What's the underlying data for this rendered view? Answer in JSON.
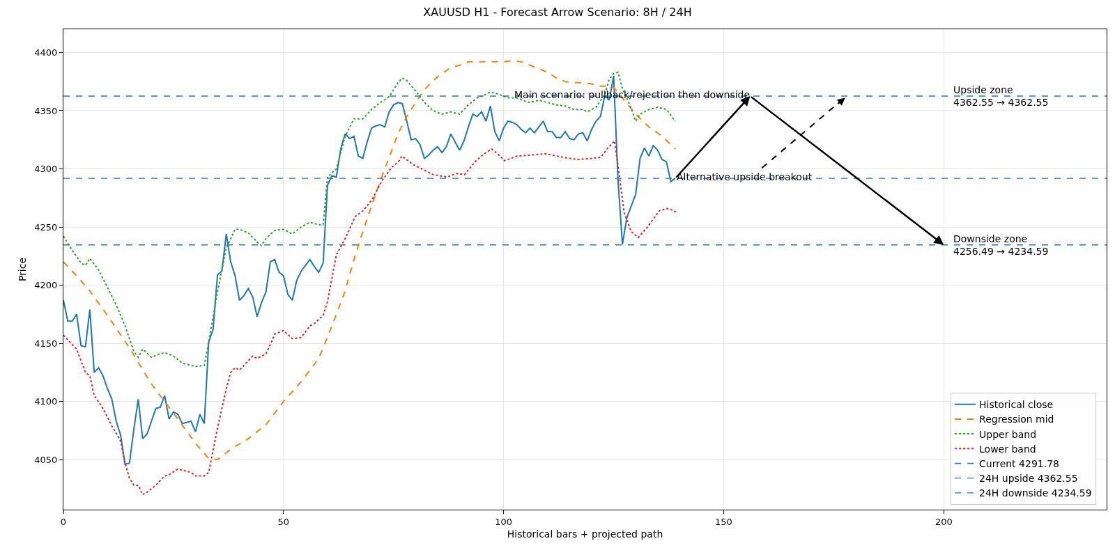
{
  "chart_data": {
    "type": "line",
    "title": "XAUUSD H1 - Forecast Arrow Scenario: 8H / 24H",
    "xlabel": "Historical bars + projected path",
    "ylabel": "Price",
    "xlim": [
      0,
      237
    ],
    "ylim": [
      4007,
      4420
    ],
    "xticks": [
      0,
      50,
      100,
      150,
      200
    ],
    "yticks": [
      4050,
      4100,
      4150,
      4200,
      4250,
      4300,
      4350,
      4400
    ],
    "grid": true,
    "legend": "bottom right",
    "series": [
      {
        "name": "Historical close",
        "color": "#1f77b4",
        "line_style": "solid",
        "x": [
          0,
          1,
          2,
          3,
          4,
          5,
          6,
          7,
          8,
          9,
          10,
          11,
          12,
          13,
          14,
          15,
          16,
          17,
          18,
          19,
          20,
          21,
          22,
          23,
          24,
          25,
          26,
          27,
          28,
          29,
          30,
          31,
          32,
          33,
          34,
          35,
          36,
          37,
          38,
          39,
          40,
          41,
          42,
          43,
          44,
          45,
          46,
          47,
          48,
          49,
          50,
          51,
          52,
          53,
          54,
          55,
          56,
          57,
          58,
          59,
          60,
          61,
          62,
          63,
          64,
          65,
          66,
          67,
          68,
          69,
          70,
          71,
          72,
          73,
          74,
          75,
          76,
          77,
          78,
          79,
          80,
          81,
          82,
          83,
          84,
          85,
          86,
          87,
          88,
          89,
          90,
          91,
          92,
          93,
          94,
          95,
          96,
          97,
          98,
          99,
          100,
          101,
          102,
          103,
          104,
          105,
          106,
          107,
          108,
          109,
          110,
          111,
          112,
          113,
          114,
          115,
          116,
          117,
          118,
          119,
          120,
          121,
          122,
          123,
          124,
          125,
          126,
          127,
          128,
          129,
          130,
          131,
          132,
          133,
          134,
          135,
          136,
          137,
          138,
          139
        ],
        "values": [
          4187,
          4169,
          4169,
          4175,
          4148,
          4147,
          4179,
          4125,
          4129,
          4122,
          4111,
          4102,
          4083,
          4071,
          4046,
          4047,
          4076,
          4102,
          4068,
          4072,
          4083,
          4094,
          4095,
          4105,
          4085,
          4091,
          4089,
          4081,
          4082,
          4083,
          4074,
          4089,
          4081,
          4151,
          4162,
          4209,
          4212,
          4244,
          4220,
          4208,
          4187,
          4191,
          4197,
          4190,
          4173,
          4185,
          4194,
          4220,
          4222,
          4211,
          4208,
          4192,
          4187,
          4204,
          4212,
          4217,
          4222,
          4216,
          4211,
          4219,
          4286,
          4294,
          4293,
          4317,
          4330,
          4326,
          4328,
          4311,
          4309,
          4323,
          4335,
          4337,
          4338,
          4336,
          4349,
          4355,
          4357,
          4356,
          4341,
          4325,
          4326,
          4321,
          4309,
          4312,
          4316,
          4319,
          4314,
          4319,
          4330,
          4323,
          4316,
          4324,
          4336,
          4347,
          4345,
          4349,
          4341,
          4354,
          4332,
          4324,
          4335,
          4341,
          4340,
          4338,
          4334,
          4331,
          4335,
          4331,
          4336,
          4341,
          4332,
          4332,
          4327,
          4327,
          4332,
          4326,
          4325,
          4330,
          4331,
          4324,
          4334,
          4341,
          4345,
          4363,
          4359,
          4380,
          4290,
          4235,
          4258,
          4268,
          4278,
          4309,
          4318,
          4311,
          4320,
          4316,
          4308,
          4306,
          4289,
          4292
        ]
      },
      {
        "name": "Regression mid",
        "color": "#ff7f0e",
        "line_style": "dashed",
        "x": [
          0,
          3,
          6,
          10,
          15,
          20,
          25,
          30,
          33,
          35,
          38,
          42,
          46,
          50,
          54,
          58,
          61,
          64,
          66,
          68,
          70,
          72,
          74,
          76,
          78,
          80,
          82,
          84,
          86,
          88,
          90,
          92,
          94,
          96,
          98,
          100,
          102,
          104,
          106,
          108,
          110,
          112,
          114,
          116,
          118,
          120,
          122,
          124,
          125,
          127,
          130,
          133,
          136,
          139
        ],
        "values": [
          4220,
          4208,
          4195,
          4174,
          4146,
          4115,
          4090,
          4064,
          4051,
          4050,
          4059,
          4068,
          4080,
          4100,
          4117,
          4137,
          4165,
          4195,
          4222,
          4246,
          4268,
          4290,
          4310,
          4330,
          4345,
          4357,
          4368,
          4376,
          4382,
          4387,
          4389,
          4392,
          4392,
          4392,
          4392,
          4392,
          4393,
          4392,
          4389,
          4386,
          4383,
          4378,
          4375,
          4374,
          4374,
          4373,
          4371,
          4371,
          4370,
          4361,
          4347,
          4336,
          4328,
          4317
        ]
      },
      {
        "name": "Upper band",
        "color": "#2ca02c",
        "line_style": "dotted",
        "x": [
          0,
          2,
          4,
          5,
          6,
          8,
          10,
          12,
          14,
          15,
          16,
          17,
          18,
          20,
          22,
          23,
          25,
          27,
          29,
          30,
          32,
          33,
          35,
          37,
          39,
          40,
          42,
          44,
          45,
          46,
          48,
          50,
          52,
          54,
          56,
          58,
          59,
          60,
          62,
          64,
          66,
          68,
          70,
          72,
          74,
          76,
          77,
          78,
          80,
          82,
          84,
          86,
          88,
          90,
          92,
          94,
          96,
          97,
          99,
          101,
          103,
          105,
          106,
          108,
          110,
          112,
          114,
          116,
          118,
          119,
          121,
          123,
          124,
          125,
          126,
          127,
          129,
          130,
          131,
          133,
          135,
          137,
          139
        ],
        "values": [
          4242,
          4230,
          4219,
          4217,
          4223,
          4213,
          4198,
          4183,
          4165,
          4154,
          4143,
          4138,
          4145,
          4138,
          4141,
          4142,
          4139,
          4133,
          4131,
          4130,
          4131,
          4151,
          4194,
          4232,
          4248,
          4248,
          4245,
          4237,
          4234,
          4240,
          4247,
          4248,
          4244,
          4250,
          4254,
          4252,
          4252,
          4293,
          4300,
          4328,
          4343,
          4343,
          4351,
          4357,
          4362,
          4374,
          4378,
          4376,
          4367,
          4357,
          4350,
          4347,
          4349,
          4347,
          4355,
          4361,
          4364,
          4366,
          4364,
          4361,
          4361,
          4358,
          4357,
          4359,
          4357,
          4355,
          4354,
          4351,
          4351,
          4349,
          4353,
          4364,
          4377,
          4382,
          4383,
          4369,
          4352,
          4341,
          4347,
          4351,
          4353,
          4351,
          4341
        ]
      },
      {
        "name": "Lower band",
        "color": "#d62728",
        "line_style": "dotted",
        "x": [
          0,
          2,
          3,
          5,
          6,
          7,
          9,
          11,
          13,
          14,
          15,
          16,
          17,
          18,
          19,
          21,
          23,
          24,
          26,
          28,
          29,
          30,
          32,
          33,
          34,
          35,
          36,
          37,
          38,
          39,
          40,
          42,
          43,
          44,
          46,
          47,
          48,
          50,
          52,
          54,
          56,
          57,
          59,
          60,
          61,
          62,
          64,
          66.3,
          68.1,
          70.2,
          72.4,
          74.5,
          76.1,
          76.9,
          79.3,
          81.9,
          84,
          87.2,
          89.3,
          91.1,
          93.5,
          95.6,
          97.3,
          98.9,
          100.2,
          103.1,
          106.8,
          109.5,
          112.1,
          114.7,
          117.3,
          120,
          122.1,
          123.7,
          125.2,
          126.3,
          127.4,
          129,
          130.6,
          132.7,
          135.4,
          137.5,
          139.6
        ],
        "values": [
          4157,
          4149,
          4145,
          4125,
          4122,
          4105,
          4094,
          4079,
          4066,
          4047,
          4034,
          4028,
          4028,
          4020,
          4022,
          4028,
          4036,
          4037,
          4042,
          4040,
          4039,
          4036,
          4036,
          4039,
          4058,
          4077,
          4094,
          4111,
          4125,
          4129,
          4127,
          4135,
          4139,
          4137,
          4141,
          4149,
          4158,
          4161,
          4154,
          4155,
          4165,
          4167,
          4174,
          4186,
          4206,
          4226,
          4240,
          4259,
          4264,
          4274,
          4290,
          4301,
          4306,
          4311,
          4304,
          4299,
          4295,
          4293,
          4296,
          4295,
          4306,
          4313,
          4317,
          4312,
          4307,
          4311,
          4312,
          4313,
          4311,
          4309,
          4308,
          4309,
          4310,
          4318,
          4324,
          4294,
          4262,
          4246,
          4241,
          4250,
          4264,
          4266,
          4262
        ]
      }
    ],
    "ref_lines": [
      {
        "axis": "y",
        "value": 4291.78,
        "label": "Current 4291.78",
        "color": "#1f77b4",
        "line_style": "dashed"
      },
      {
        "axis": "y",
        "value": 4362.55,
        "label": "24H upside 4362.55",
        "color": "#1f77b4",
        "line_style": "dashed"
      },
      {
        "axis": "y",
        "value": 4234.59,
        "label": "24H downside 4234.59",
        "color": "#1f77b4",
        "line_style": "dashed"
      }
    ],
    "annotations": [
      {
        "text": "Main scenario: pullback/rejection then downside",
        "x": 156,
        "y": 4362.55
      },
      {
        "text": "Alternative upside breakout",
        "x": 139,
        "y": 4291.78
      },
      {
        "text": "Upside zone\n4362.55 → 4362.55",
        "x": 200,
        "y": 4362.55
      },
      {
        "text": "Downside zone\n4256.49 → 4234.59",
        "x": 200,
        "y": 4234.59
      }
    ]
  }
}
